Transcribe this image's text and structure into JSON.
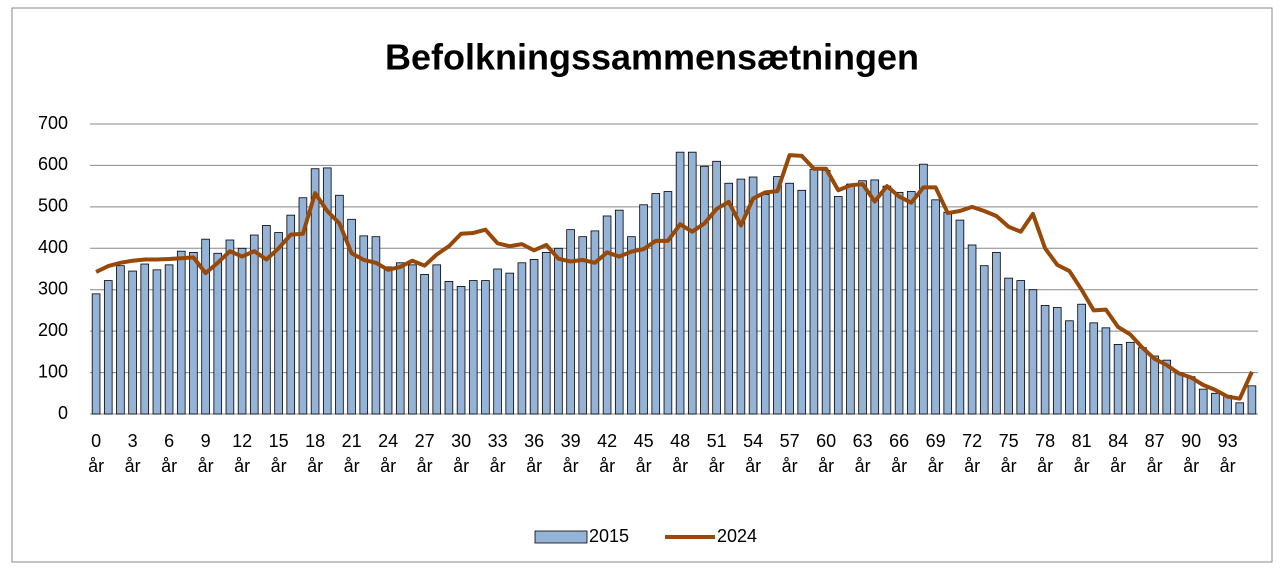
{
  "chart_data": {
    "type": "bar_line",
    "title": "Befolkningssammensætningen",
    "categories": [
      "0 år",
      null,
      null,
      "3 år",
      null,
      null,
      "6 år",
      null,
      null,
      "9 år",
      null,
      null,
      "12 år",
      null,
      null,
      "15 år",
      null,
      null,
      "18 år",
      null,
      null,
      "21 år",
      null,
      null,
      "24 år",
      null,
      null,
      "27 år",
      null,
      null,
      "30 år",
      null,
      null,
      "33 år",
      null,
      null,
      "36 år",
      null,
      null,
      "39 år",
      null,
      null,
      "42 år",
      null,
      null,
      "45 år",
      null,
      null,
      "48 år",
      null,
      null,
      "51 år",
      null,
      null,
      "54 år",
      null,
      null,
      "57 år",
      null,
      null,
      "60 år",
      null,
      null,
      "63 år",
      null,
      null,
      "66 år",
      null,
      null,
      "69 år",
      null,
      null,
      "72 år",
      null,
      null,
      "75 år",
      null,
      null,
      "78 år",
      null,
      null,
      "81 år",
      null,
      null,
      "84 år",
      null,
      null,
      "87 år",
      null,
      null,
      "90 år",
      null,
      null,
      "93 år",
      null,
      null
    ],
    "series": [
      {
        "name": "2015",
        "type": "bar",
        "color": "#95b3d7",
        "values": [
          290,
          322,
          358,
          345,
          362,
          348,
          360,
          393,
          390,
          422,
          388,
          420,
          400,
          432,
          455,
          438,
          480,
          522,
          592,
          594,
          528,
          470,
          430,
          428,
          355,
          365,
          360,
          337,
          360,
          320,
          308,
          322,
          322,
          350,
          340,
          365,
          373,
          390,
          400,
          445,
          428,
          442,
          478,
          492,
          428,
          505,
          532,
          537,
          632,
          632,
          598,
          610,
          557,
          567,
          572,
          530,
          573,
          557,
          540,
          590,
          588,
          525,
          555,
          563,
          565,
          550,
          535,
          537,
          603,
          517,
          487,
          468,
          408,
          358,
          390,
          328,
          322,
          300,
          262,
          257,
          225,
          265,
          220,
          208,
          168,
          173,
          160,
          140,
          130,
          100,
          90,
          60,
          50,
          45,
          27,
          68
        ]
      },
      {
        "name": "2024",
        "type": "line",
        "color": "#984807",
        "values": [
          343,
          357,
          365,
          370,
          373,
          373,
          374,
          376,
          378,
          340,
          365,
          393,
          380,
          393,
          373,
          400,
          433,
          435,
          533,
          490,
          460,
          388,
          372,
          365,
          348,
          355,
          370,
          358,
          385,
          405,
          435,
          437,
          445,
          412,
          405,
          410,
          395,
          408,
          375,
          368,
          372,
          365,
          390,
          380,
          392,
          398,
          418,
          418,
          458,
          440,
          460,
          495,
          512,
          455,
          520,
          535,
          538,
          625,
          623,
          592,
          592,
          540,
          552,
          555,
          513,
          550,
          525,
          510,
          547,
          547,
          485,
          490,
          500,
          490,
          478,
          452,
          440,
          483,
          400,
          360,
          345,
          300,
          250,
          252,
          210,
          192,
          160,
          133,
          118,
          98,
          88,
          70,
          58,
          42,
          37,
          102
        ]
      }
    ],
    "ylim": [
      0,
      700
    ],
    "yticks": [
      0,
      100,
      200,
      300,
      400,
      500,
      600,
      700
    ],
    "grid": true,
    "legend": "bottom"
  }
}
